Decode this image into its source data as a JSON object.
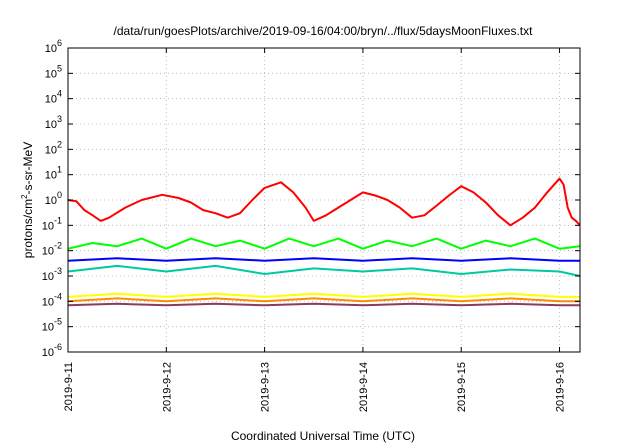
{
  "chart_data": {
    "type": "line",
    "title": "/data/run/goesPlots/archive/2019-09-16/04:00/bryn/../flux/5daysMoonFluxes.txt",
    "xlabel": "Coordinated Universal Time (UTC)",
    "ylabel": "protons/cm²-s-sr-MeV",
    "ylabel_parts": {
      "pre": "protons/cm",
      "sup": "2",
      "post": "-s-sr-MeV"
    },
    "yscale": "log",
    "ylim": [
      1e-06,
      1000000.0
    ],
    "xlim": [
      "2019-09-11",
      "2019-09-16 05:00"
    ],
    "x_ticks": [
      "2019-9-11",
      "2019-9-12",
      "2019-9-13",
      "2019-9-14",
      "2019-9-15",
      "2019-9-16"
    ],
    "y_ticks": [
      {
        "base": "10",
        "exp": "-6"
      },
      {
        "base": "10",
        "exp": "-5"
      },
      {
        "base": "10",
        "exp": "-4"
      },
      {
        "base": "10",
        "exp": "-3"
      },
      {
        "base": "10",
        "exp": "-2"
      },
      {
        "base": "10",
        "exp": "-1"
      },
      {
        "base": "10",
        "exp": "0"
      },
      {
        "base": "10",
        "exp": "1"
      },
      {
        "base": "10",
        "exp": "2"
      },
      {
        "base": "10",
        "exp": "3"
      },
      {
        "base": "10",
        "exp": "4"
      },
      {
        "base": "10",
        "exp": "5"
      },
      {
        "base": "10",
        "exp": "6"
      }
    ],
    "grid": true,
    "series": [
      {
        "color": "#ff0000",
        "values": [
          [
            "2019-09-11 00:00",
            1.0
          ],
          [
            "2019-09-11 02:00",
            0.9
          ],
          [
            "2019-09-11 04:00",
            0.4
          ],
          [
            "2019-09-11 06:00",
            0.25
          ],
          [
            "2019-09-11 08:00",
            0.15
          ],
          [
            "2019-09-11 10:00",
            0.2
          ],
          [
            "2019-09-11 14:00",
            0.5
          ],
          [
            "2019-09-11 18:00",
            1.0
          ],
          [
            "2019-09-11 23:00",
            1.6
          ],
          [
            "2019-09-12 03:00",
            1.2
          ],
          [
            "2019-09-12 06:00",
            0.8
          ],
          [
            "2019-09-12 09:00",
            0.4
          ],
          [
            "2019-09-12 12:00",
            0.3
          ],
          [
            "2019-09-12 15:00",
            0.2
          ],
          [
            "2019-09-12 18:00",
            0.3
          ],
          [
            "2019-09-12 21:00",
            1.0
          ],
          [
            "2019-09-13 00:00",
            3.0
          ],
          [
            "2019-09-13 04:00",
            5.0
          ],
          [
            "2019-09-13 07:00",
            2.0
          ],
          [
            "2019-09-13 10:00",
            0.5
          ],
          [
            "2019-09-13 12:00",
            0.15
          ],
          [
            "2019-09-13 15:00",
            0.25
          ],
          [
            "2019-09-13 18:00",
            0.5
          ],
          [
            "2019-09-13 21:00",
            1.0
          ],
          [
            "2019-09-14 00:00",
            2.0
          ],
          [
            "2019-09-14 03:00",
            1.5
          ],
          [
            "2019-09-14 06:00",
            1.0
          ],
          [
            "2019-09-14 09:00",
            0.5
          ],
          [
            "2019-09-14 12:00",
            0.2
          ],
          [
            "2019-09-14 15:00",
            0.25
          ],
          [
            "2019-09-14 18:00",
            0.6
          ],
          [
            "2019-09-14 21:00",
            1.5
          ],
          [
            "2019-09-15 00:00",
            3.5
          ],
          [
            "2019-09-15 03:00",
            2.0
          ],
          [
            "2019-09-15 06:00",
            0.8
          ],
          [
            "2019-09-15 09:00",
            0.25
          ],
          [
            "2019-09-15 12:00",
            0.1
          ],
          [
            "2019-09-15 15:00",
            0.2
          ],
          [
            "2019-09-15 18:00",
            0.5
          ],
          [
            "2019-09-15 21:00",
            2.0
          ],
          [
            "2019-09-16 00:00",
            7.0
          ],
          [
            "2019-09-16 01:00",
            4.0
          ],
          [
            "2019-09-16 02:00",
            0.5
          ],
          [
            "2019-09-16 03:00",
            0.2
          ],
          [
            "2019-09-16 04:00",
            0.15
          ],
          [
            "2019-09-16 05:00",
            0.1
          ]
        ]
      },
      {
        "color": "#00ff00",
        "values": [
          [
            "2019-09-11 00:00",
            0.012
          ],
          [
            "2019-09-11 06:00",
            0.02
          ],
          [
            "2019-09-11 12:00",
            0.015
          ],
          [
            "2019-09-11 18:00",
            0.03
          ],
          [
            "2019-09-12 00:00",
            0.012
          ],
          [
            "2019-09-12 06:00",
            0.03
          ],
          [
            "2019-09-12 12:00",
            0.015
          ],
          [
            "2019-09-12 18:00",
            0.025
          ],
          [
            "2019-09-13 00:00",
            0.012
          ],
          [
            "2019-09-13 06:00",
            0.03
          ],
          [
            "2019-09-13 12:00",
            0.015
          ],
          [
            "2019-09-13 18:00",
            0.03
          ],
          [
            "2019-09-14 00:00",
            0.012
          ],
          [
            "2019-09-14 06:00",
            0.025
          ],
          [
            "2019-09-14 12:00",
            0.015
          ],
          [
            "2019-09-14 18:00",
            0.03
          ],
          [
            "2019-09-15 00:00",
            0.012
          ],
          [
            "2019-09-15 06:00",
            0.025
          ],
          [
            "2019-09-15 12:00",
            0.015
          ],
          [
            "2019-09-15 18:00",
            0.03
          ],
          [
            "2019-09-16 00:00",
            0.012
          ],
          [
            "2019-09-16 05:00",
            0.015
          ]
        ]
      },
      {
        "color": "#00c8a0",
        "values": [
          [
            "2019-09-11 00:00",
            0.0015
          ],
          [
            "2019-09-11 12:00",
            0.0025
          ],
          [
            "2019-09-12 00:00",
            0.0015
          ],
          [
            "2019-09-12 12:00",
            0.0025
          ],
          [
            "2019-09-13 00:00",
            0.0012
          ],
          [
            "2019-09-13 12:00",
            0.002
          ],
          [
            "2019-09-14 00:00",
            0.0015
          ],
          [
            "2019-09-14 12:00",
            0.002
          ],
          [
            "2019-09-15 00:00",
            0.0012
          ],
          [
            "2019-09-15 12:00",
            0.0018
          ],
          [
            "2019-09-16 00:00",
            0.0015
          ],
          [
            "2019-09-16 05:00",
            0.001
          ]
        ]
      },
      {
        "color": "#0000ff",
        "values": [
          [
            "2019-09-11 00:00",
            0.004
          ],
          [
            "2019-09-11 12:00",
            0.005
          ],
          [
            "2019-09-12 00:00",
            0.004
          ],
          [
            "2019-09-12 12:00",
            0.005
          ],
          [
            "2019-09-13 00:00",
            0.004
          ],
          [
            "2019-09-13 12:00",
            0.005
          ],
          [
            "2019-09-14 00:00",
            0.004
          ],
          [
            "2019-09-14 12:00",
            0.005
          ],
          [
            "2019-09-15 00:00",
            0.004
          ],
          [
            "2019-09-15 12:00",
            0.005
          ],
          [
            "2019-09-16 00:00",
            0.004
          ],
          [
            "2019-09-16 05:00",
            0.004
          ]
        ]
      },
      {
        "color": "#ffff00",
        "values": [
          [
            "2019-09-11 00:00",
            0.00015
          ],
          [
            "2019-09-11 12:00",
            0.0002
          ],
          [
            "2019-09-12 00:00",
            0.00015
          ],
          [
            "2019-09-12 12:00",
            0.0002
          ],
          [
            "2019-09-13 00:00",
            0.00015
          ],
          [
            "2019-09-13 12:00",
            0.0002
          ],
          [
            "2019-09-14 00:00",
            0.00015
          ],
          [
            "2019-09-14 12:00",
            0.0002
          ],
          [
            "2019-09-15 00:00",
            0.00015
          ],
          [
            "2019-09-15 12:00",
            0.0002
          ],
          [
            "2019-09-16 00:00",
            0.00015
          ],
          [
            "2019-09-16 05:00",
            0.00015
          ]
        ]
      },
      {
        "color": "#ff8c00",
        "values": [
          [
            "2019-09-11 00:00",
            0.0001
          ],
          [
            "2019-09-11 12:00",
            0.00013
          ],
          [
            "2019-09-12 00:00",
            0.0001
          ],
          [
            "2019-09-12 12:00",
            0.00013
          ],
          [
            "2019-09-13 00:00",
            0.0001
          ],
          [
            "2019-09-13 12:00",
            0.00013
          ],
          [
            "2019-09-14 00:00",
            0.0001
          ],
          [
            "2019-09-14 12:00",
            0.00013
          ],
          [
            "2019-09-15 00:00",
            0.0001
          ],
          [
            "2019-09-15 12:00",
            0.00013
          ],
          [
            "2019-09-16 00:00",
            0.0001
          ],
          [
            "2019-09-16 05:00",
            0.0001
          ]
        ]
      },
      {
        "color": "#8b3a62",
        "values": [
          [
            "2019-09-11 00:00",
            7e-05
          ],
          [
            "2019-09-11 12:00",
            8e-05
          ],
          [
            "2019-09-12 00:00",
            7e-05
          ],
          [
            "2019-09-12 12:00",
            8e-05
          ],
          [
            "2019-09-13 00:00",
            7e-05
          ],
          [
            "2019-09-13 12:00",
            8e-05
          ],
          [
            "2019-09-14 00:00",
            7e-05
          ],
          [
            "2019-09-14 12:00",
            8e-05
          ],
          [
            "2019-09-15 00:00",
            7e-05
          ],
          [
            "2019-09-15 12:00",
            8e-05
          ],
          [
            "2019-09-16 00:00",
            7e-05
          ],
          [
            "2019-09-16 05:00",
            7e-05
          ]
        ]
      }
    ]
  }
}
